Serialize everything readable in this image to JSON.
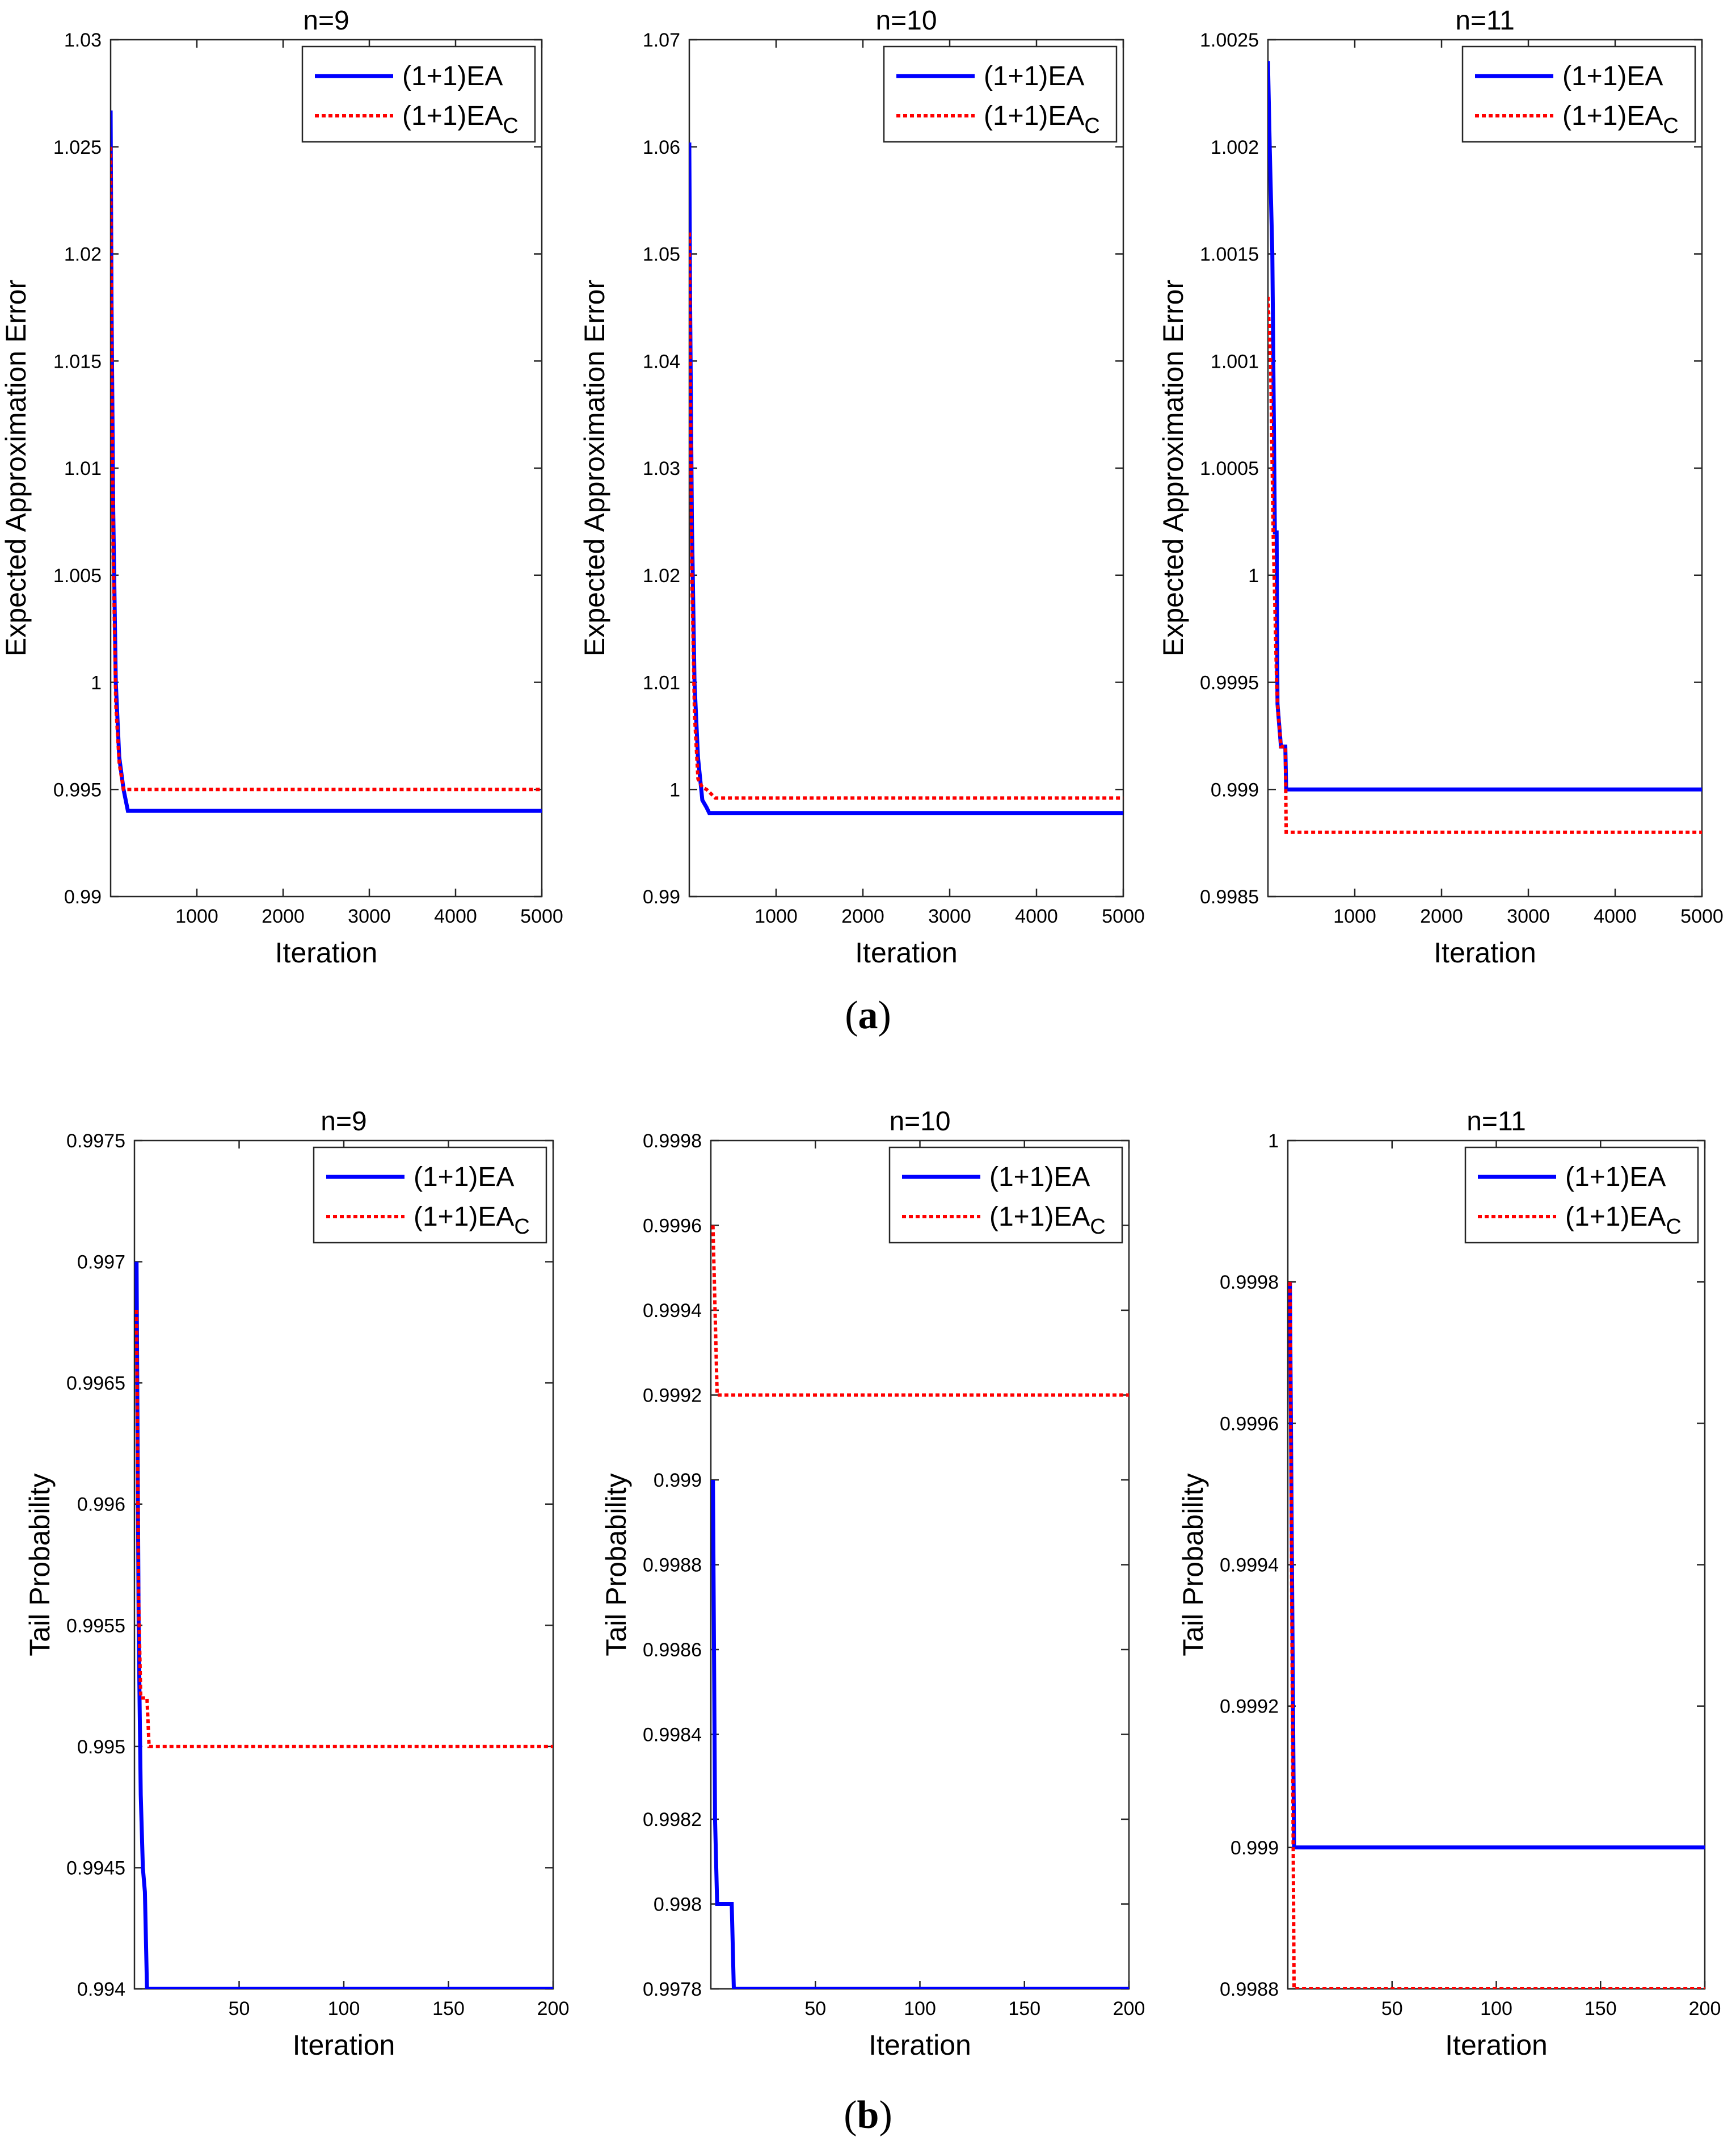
{
  "colors": {
    "ea": "#0000ff",
    "eac": "#ff0000",
    "axis": "#262626"
  },
  "legend": {
    "ea_label": "(1+1)EA",
    "eac_label": "(1+1)EA",
    "eac_subscript": "C"
  },
  "panels": [
    {
      "id": "a",
      "label_open": "(",
      "label_letter": "a",
      "label_close": ")"
    },
    {
      "id": "b",
      "label_open": "(",
      "label_letter": "b",
      "label_close": ")"
    }
  ],
  "chart_data": [
    {
      "type": "line",
      "panel": "a",
      "title": "n=9",
      "xlabel": "Iteration",
      "ylabel": "Expected Approximation Error",
      "xlim": [
        0,
        5000
      ],
      "ylim": [
        0.99,
        1.03
      ],
      "xticks": [
        "1000",
        "2000",
        "3000",
        "4000",
        "5000"
      ],
      "yticks": [
        "0.99",
        "0.995",
        "1",
        "1.005",
        "1.01",
        "1.015",
        "1.02",
        "1.025",
        "1.03"
      ],
      "series": [
        {
          "name": "(1+1)EA",
          "x": [
            0,
            10,
            30,
            60,
            100,
            150,
            200,
            5000
          ],
          "y": [
            1.0267,
            1.018,
            1.008,
            1.0,
            0.9965,
            0.995,
            0.994,
            0.994
          ]
        },
        {
          "name": "(1+1)EAC",
          "x": [
            0,
            10,
            30,
            60,
            100,
            150,
            200,
            5000
          ],
          "y": [
            1.025,
            1.016,
            1.006,
            0.999,
            0.9962,
            0.995,
            0.995,
            0.995
          ]
        }
      ]
    },
    {
      "type": "line",
      "panel": "a",
      "title": "n=10",
      "xlabel": "Iteration",
      "ylabel": "Expected Approximation Error",
      "xlim": [
        0,
        5000
      ],
      "ylim": [
        0.99,
        1.07
      ],
      "xticks": [
        "1000",
        "2000",
        "3000",
        "4000",
        "5000"
      ],
      "yticks": [
        "0.99",
        "1",
        "1.01",
        "1.02",
        "1.03",
        "1.04",
        "1.05",
        "1.06",
        "1.07"
      ],
      "series": [
        {
          "name": "(1+1)EA",
          "x": [
            0,
            10,
            30,
            60,
            100,
            150,
            200,
            230,
            5000
          ],
          "y": [
            1.0604,
            1.045,
            1.025,
            1.01,
            1.003,
            0.999,
            0.9983,
            0.9978,
            0.9978
          ]
        },
        {
          "name": "(1+1)EAC",
          "x": [
            0,
            10,
            30,
            60,
            100,
            150,
            200,
            300,
            5000
          ],
          "y": [
            1.052,
            1.04,
            1.02,
            1.007,
            1.001,
            1.0002,
            1.0,
            0.9992,
            0.9992
          ]
        }
      ]
    },
    {
      "type": "line",
      "panel": "a",
      "title": "n=11",
      "xlabel": "Iteration",
      "ylabel": "Expected Approximation Error",
      "xlim": [
        0,
        5000
      ],
      "ylim": [
        0.9985,
        1.0025
      ],
      "xticks": [
        "1000",
        "2000",
        "3000",
        "4000",
        "5000"
      ],
      "yticks": [
        "0.9985",
        "0.999",
        "0.9995",
        "1",
        "1.0005",
        "1.001",
        "1.0015",
        "1.002",
        "1.0025"
      ],
      "series": [
        {
          "name": "(1+1)EA",
          "x": [
            0,
            20,
            50,
            80,
            100,
            110,
            150,
            200,
            210,
            5000
          ],
          "y": [
            1.0024,
            1.002,
            1.0015,
            1.0002,
            1.0002,
            0.9994,
            0.9992,
            0.9992,
            0.999,
            0.999
          ]
        },
        {
          "name": "(1+1)EAC",
          "x": [
            0,
            30,
            60,
            100,
            110,
            150,
            200,
            210,
            5000
          ],
          "y": [
            1.0013,
            1.001,
            1.0002,
            0.9995,
            0.9994,
            0.9992,
            0.9992,
            0.9988,
            0.9988
          ]
        }
      ]
    },
    {
      "type": "line",
      "panel": "b",
      "title": "n=9",
      "xlabel": "Iteration",
      "ylabel": "Tail Probability",
      "xlim": [
        0,
        200
      ],
      "ylim": [
        0.994,
        0.9975
      ],
      "xticks": [
        "50",
        "100",
        "150",
        "200"
      ],
      "yticks": [
        "0.994",
        "0.9945",
        "0.995",
        "0.9955",
        "0.996",
        "0.9965",
        "0.997",
        "0.9975"
      ],
      "series": [
        {
          "name": "(1+1)EA",
          "x": [
            1,
            2,
            3,
            4,
            5,
            6,
            200
          ],
          "y": [
            0.997,
            0.9955,
            0.9948,
            0.9945,
            0.9944,
            0.994,
            0.994
          ]
        },
        {
          "name": "(1+1)EAC",
          "x": [
            1,
            2,
            3,
            6,
            7,
            200
          ],
          "y": [
            0.9968,
            0.9956,
            0.9952,
            0.9952,
            0.995,
            0.995
          ]
        }
      ]
    },
    {
      "type": "line",
      "panel": "b",
      "title": "n=10",
      "xlabel": "Iteration",
      "ylabel": "Tail Probability",
      "xlim": [
        0,
        200
      ],
      "ylim": [
        0.9978,
        0.9998
      ],
      "xticks": [
        "50",
        "100",
        "150",
        "200"
      ],
      "yticks": [
        "0.9978",
        "0.998",
        "0.9982",
        "0.9984",
        "0.9986",
        "0.9988",
        "0.999",
        "0.9992",
        "0.9994",
        "0.9996",
        "0.9998"
      ],
      "series": [
        {
          "name": "(1+1)EA",
          "x": [
            1,
            2,
            3,
            10,
            11,
            200
          ],
          "y": [
            0.999,
            0.9982,
            0.998,
            0.998,
            0.9978,
            0.9978
          ]
        },
        {
          "name": "(1+1)EAC",
          "x": [
            1,
            2,
            3,
            200
          ],
          "y": [
            0.9996,
            0.9994,
            0.9992,
            0.9992
          ]
        }
      ]
    },
    {
      "type": "line",
      "panel": "b",
      "title": "n=11",
      "xlabel": "Iteration",
      "ylabel": "Tail Probability",
      "xlim": [
        0,
        200
      ],
      "ylim": [
        0.9988,
        1
      ],
      "xticks": [
        "50",
        "100",
        "150",
        "200"
      ],
      "yticks": [
        "0.9988",
        "0.999",
        "0.9992",
        "0.9994",
        "0.9996",
        "0.9998",
        "1"
      ],
      "series": [
        {
          "name": "(1+1)EA",
          "x": [
            1,
            2,
            3,
            200
          ],
          "y": [
            0.9998,
            0.9994,
            0.999,
            0.999
          ]
        },
        {
          "name": "(1+1)EAC",
          "x": [
            1,
            2,
            3,
            200
          ],
          "y": [
            0.9998,
            0.9993,
            0.9988,
            0.9988
          ]
        }
      ]
    }
  ]
}
